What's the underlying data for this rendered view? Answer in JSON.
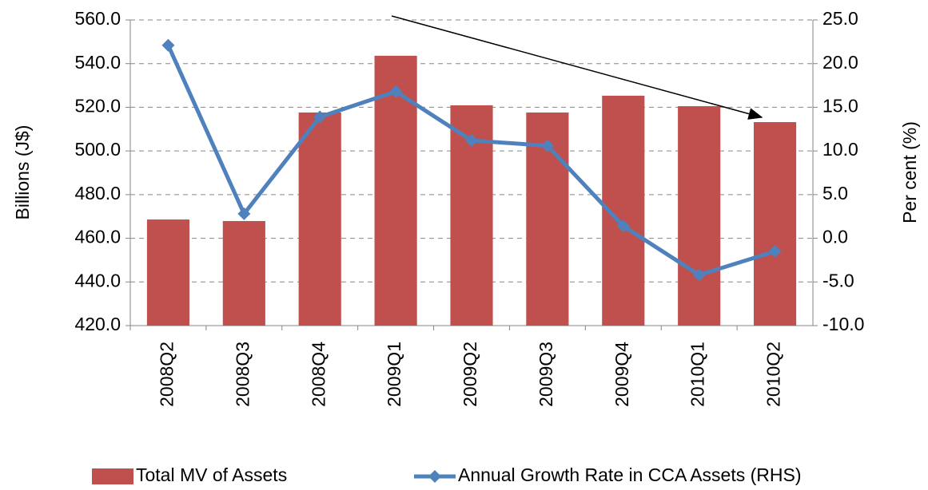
{
  "chart_data": {
    "type": "bar",
    "categories": [
      "2008Q2",
      "2008Q3",
      "2008Q4",
      "2009Q1",
      "2009Q2",
      "2009Q3",
      "2009Q4",
      "2010Q1",
      "2010Q2"
    ],
    "series": [
      {
        "name": "Total MV of Assets",
        "color": "#c0504d",
        "type": "bar",
        "values": [
          468.6,
          467.9,
          517.6,
          543.6,
          520.9,
          517.6,
          525.3,
          520.5,
          513.2
        ]
      },
      {
        "name": "Annual Growth Rate in CCA Assets (RHS)",
        "color": "#4f81bd",
        "type": "line",
        "axis": "y2",
        "values": [
          22.1,
          2.8,
          13.9,
          16.8,
          11.2,
          10.6,
          1.4,
          -4.2,
          -1.5
        ]
      }
    ],
    "y_label": "Billions (J$)",
    "y2_label": "Per cent (%)",
    "ylim": [
      420,
      560
    ],
    "yticks": [
      {
        "value": 420,
        "label": "420.0"
      },
      {
        "value": 440,
        "label": "440.0"
      },
      {
        "value": 460,
        "label": "460.0"
      },
      {
        "value": 480,
        "label": "480.0"
      },
      {
        "value": 500,
        "label": "500.0"
      },
      {
        "value": 520,
        "label": "520.0"
      },
      {
        "value": 540,
        "label": "540.0"
      },
      {
        "value": 560,
        "label": "560.0"
      }
    ],
    "y2lim": [
      -10,
      25
    ],
    "y2ticks": [
      {
        "value": -10,
        "label": "-10.0"
      },
      {
        "value": -5,
        "label": "-5.0"
      },
      {
        "value": 0,
        "label": "0.0"
      },
      {
        "value": 5,
        "label": "5.0"
      },
      {
        "value": 10,
        "label": "10.0"
      },
      {
        "value": 15,
        "label": "15.0"
      },
      {
        "value": 20,
        "label": "20.0"
      },
      {
        "value": 25,
        "label": "25.0"
      }
    ],
    "grid": true
  }
}
